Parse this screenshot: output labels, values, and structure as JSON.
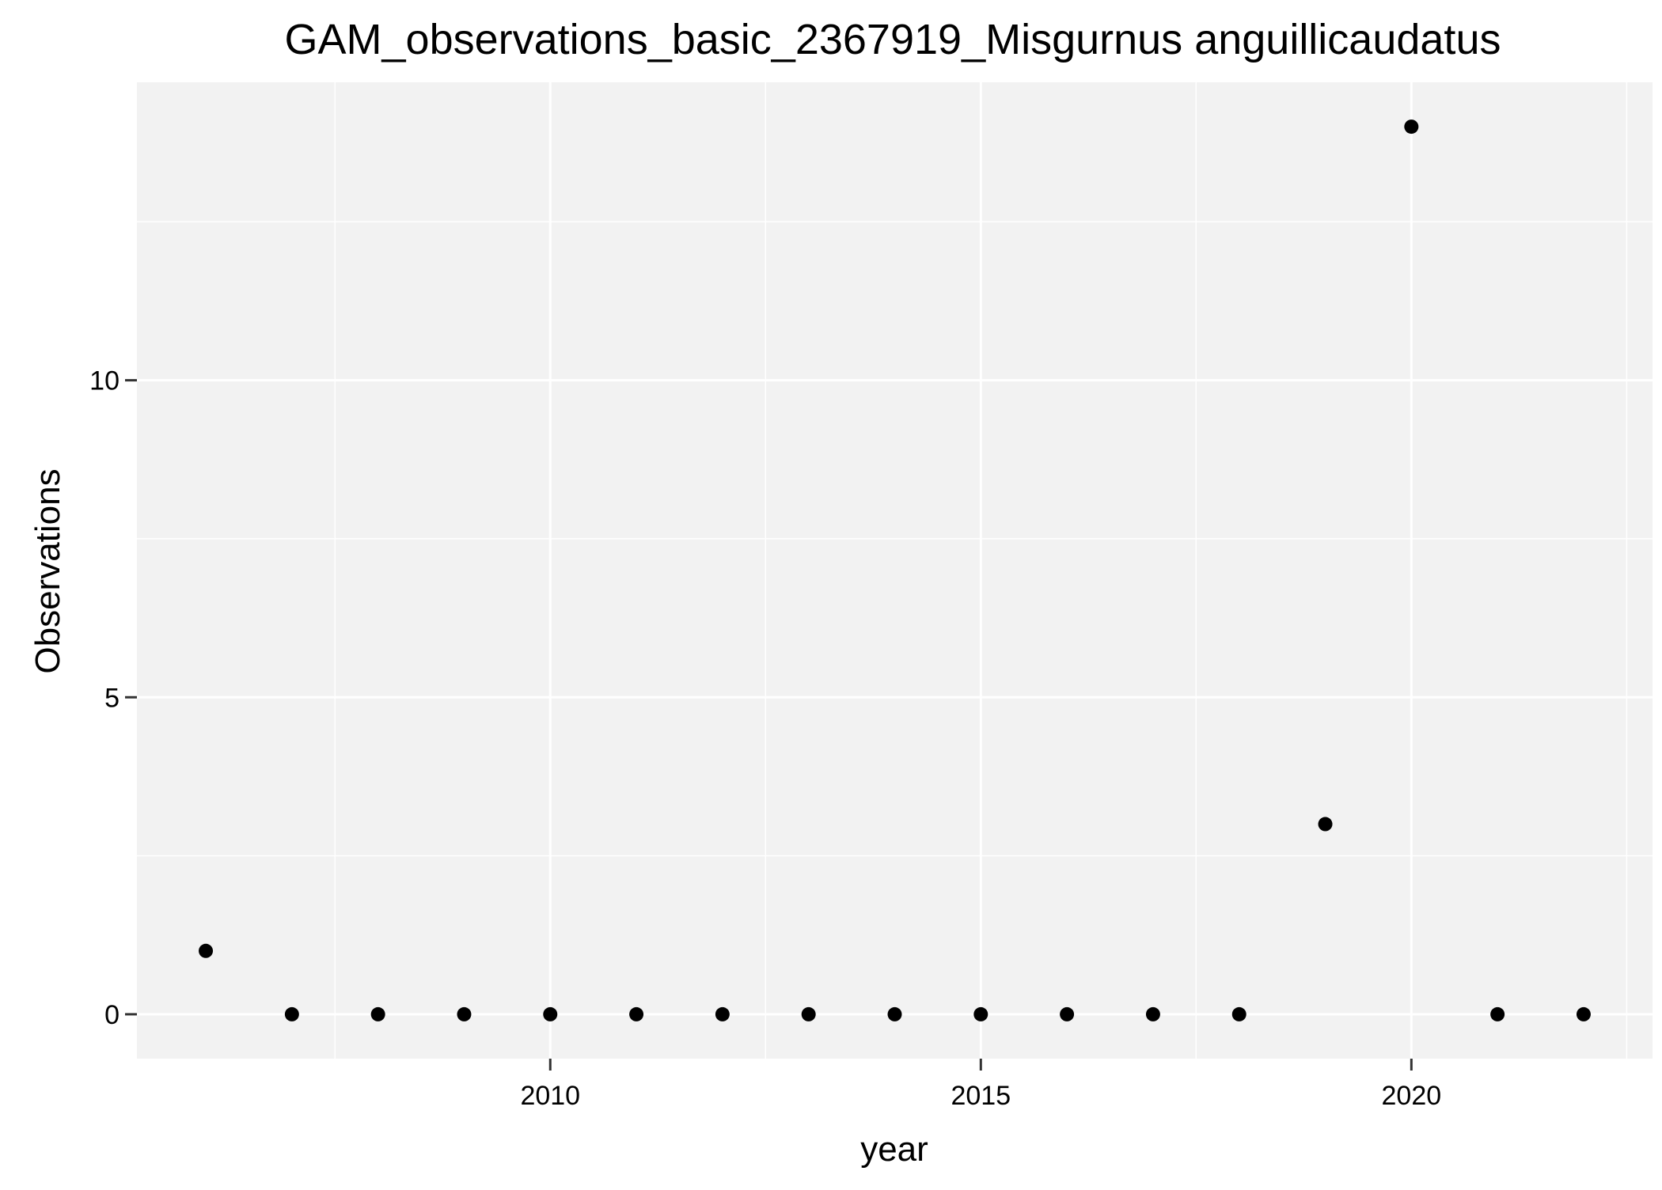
{
  "chart_data": {
    "type": "scatter",
    "title": "GAM_observations_basic_2367919_Misgurnus anguillicaudatus",
    "xlabel": "year",
    "ylabel": "Observations",
    "x": [
      2006,
      2007,
      2008,
      2009,
      2010,
      2011,
      2012,
      2013,
      2014,
      2015,
      2016,
      2017,
      2018,
      2019,
      2020,
      2021,
      2022
    ],
    "y": [
      1,
      0,
      0,
      0,
      0,
      0,
      0,
      0,
      0,
      0,
      0,
      0,
      0,
      3,
      14,
      0,
      0
    ],
    "xlim": [
      2005.2,
      2022.8
    ],
    "ylim": [
      -0.7,
      14.7
    ],
    "x_major_ticks": [
      2010,
      2015,
      2020
    ],
    "x_minor_ticks": [
      2007.5,
      2012.5,
      2017.5,
      2022.5
    ],
    "y_major_ticks": [
      0,
      5,
      10
    ],
    "y_minor_ticks": [
      2.5,
      7.5,
      12.5
    ],
    "x_tick_labels": [
      "2010",
      "2015",
      "2020"
    ],
    "y_tick_labels": [
      "0",
      "5",
      "10"
    ],
    "grid": true,
    "legend": "none",
    "colors": {
      "panel_background": "#f2f2f2",
      "grid": "#ffffff",
      "point": "#000000",
      "tick": "#333333"
    }
  }
}
